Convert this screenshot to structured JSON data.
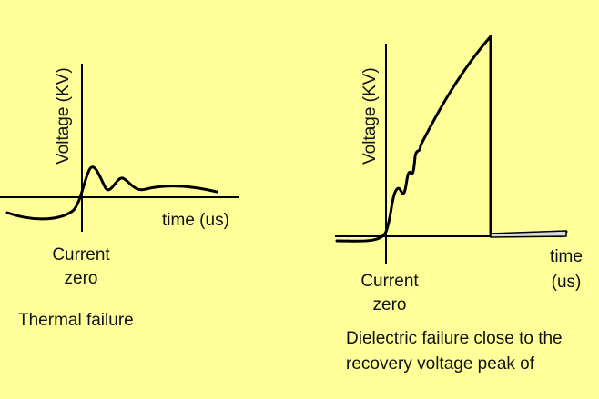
{
  "left_panel": {
    "y_axis_label": "Voltage (KV)",
    "x_axis_label": "time (us)",
    "origin_label_1": "Current",
    "origin_label_2": "zero",
    "caption": "Thermal failure"
  },
  "right_panel": {
    "y_axis_label": "Voltage (KV)",
    "x_axis_label_1": "time",
    "x_axis_label_2": "(us)",
    "origin_label_1": "Current",
    "origin_label_2": "zero",
    "caption_line_1": "Dielectric failure close to the",
    "caption_line_2": "recovery voltage peak of"
  },
  "colors": {
    "background": "#ffff99",
    "line": "#000000",
    "tail_fill": "#d9d9d9"
  }
}
